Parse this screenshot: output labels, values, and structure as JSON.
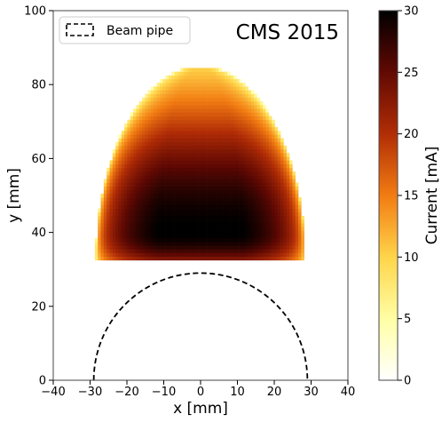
{
  "chart_data": {
    "type": "heatmap",
    "annotation": "CMS 2015",
    "xlabel": "x [mm]",
    "ylabel": "y [mm]",
    "xlim": [
      -40,
      40
    ],
    "ylim": [
      0,
      100
    ],
    "xticks": [
      -40,
      -30,
      -20,
      -10,
      0,
      10,
      20,
      30,
      40
    ],
    "yticks": [
      0,
      20,
      40,
      60,
      80,
      100
    ],
    "colorbar": {
      "label": "Current [mA]",
      "range": [
        0,
        30
      ],
      "ticks": [
        0,
        5,
        10,
        15,
        20,
        25,
        30
      ],
      "colormap": "afmhot_r"
    },
    "legend": {
      "position": "upper left",
      "entries": [
        {
          "label": "Beam pipe",
          "style": "dashed"
        }
      ]
    },
    "beam_pipe": {
      "shape": "semicircle",
      "center": [
        0,
        0
      ],
      "radius": 29
    },
    "heatmap": {
      "description": "Current density distribution, clipped below y = 32.5",
      "y_min": 32.5,
      "peak": {
        "x": 0,
        "y": 40,
        "value": 30
      },
      "outer_boundary": {
        "half_width_at_base": 28.5,
        "top_y": 85
      },
      "series": [
        {
          "x": 0,
          "y": 80,
          "value": 15
        },
        {
          "x": 0,
          "y": 60,
          "value": 23
        },
        {
          "x": 0,
          "y": 40,
          "value": 30
        },
        {
          "x": 20,
          "y": 40,
          "value": 22
        },
        {
          "x": 27,
          "y": 35,
          "value": 14
        }
      ]
    }
  }
}
